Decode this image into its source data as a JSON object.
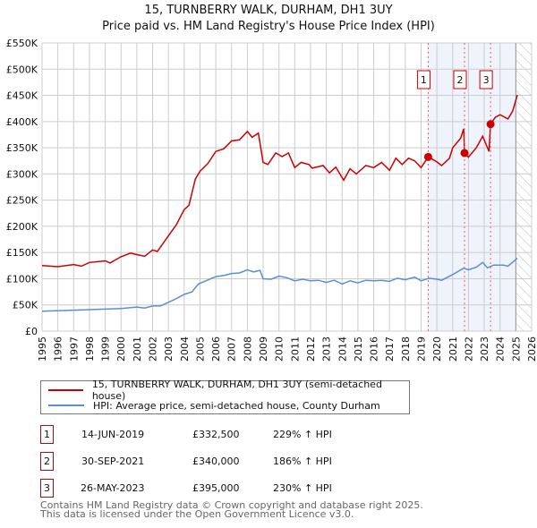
{
  "chart_data": {
    "type": "line",
    "title": "15, TURNBERRY WALK, DURHAM, DH1 3UY",
    "subtitle": "Price paid vs. HM Land Registry's House Price Index (HPI)",
    "xlim": [
      1995,
      2026
    ],
    "ylim": [
      0,
      550000
    ],
    "x_ticks": [
      "1995",
      "1996",
      "1997",
      "1998",
      "1999",
      "2000",
      "2001",
      "2002",
      "2003",
      "2004",
      "2005",
      "2006",
      "2007",
      "2008",
      "2009",
      "2010",
      "2011",
      "2012",
      "2013",
      "2014",
      "2015",
      "2016",
      "2017",
      "2018",
      "2019",
      "2020",
      "2021",
      "2022",
      "2023",
      "2024",
      "2025",
      "2026"
    ],
    "y_ticks": [
      {
        "value": 0,
        "label": "£0"
      },
      {
        "value": 50000,
        "label": "£50K"
      },
      {
        "value": 100000,
        "label": "£100K"
      },
      {
        "value": 150000,
        "label": "£150K"
      },
      {
        "value": 200000,
        "label": "£200K"
      },
      {
        "value": 250000,
        "label": "£250K"
      },
      {
        "value": 300000,
        "label": "£300K"
      },
      {
        "value": 350000,
        "label": "£350K"
      },
      {
        "value": 400000,
        "label": "£400K"
      },
      {
        "value": 450000,
        "label": "£450K"
      },
      {
        "value": 500000,
        "label": "£500K"
      },
      {
        "value": 550000,
        "label": "£550K"
      }
    ],
    "grid": true,
    "series": [
      {
        "name": "15, TURNBERRY WALK, DURHAM, DH1 3UY (semi-detached house)",
        "color": "#cc0000",
        "x": [
          1995,
          1996,
          1997,
          1997.5,
          1998,
          1999,
          1999.3,
          2000,
          2000.6,
          2001,
          2001.5,
          2002,
          2002.3,
          2003,
          2003.5,
          2004,
          2004.3,
          2004.7,
          2005,
          2005.5,
          2006,
          2006.5,
          2007,
          2007.5,
          2008,
          2008.3,
          2008.7,
          2009,
          2009.3,
          2009.8,
          2010.2,
          2010.6,
          2011,
          2011.4,
          2011.9,
          2012.1,
          2012.8,
          2013.2,
          2013.6,
          2014.1,
          2014.5,
          2014.9,
          2015.5,
          2016,
          2016.5,
          2017,
          2017.4,
          2017.8,
          2018.2,
          2018.6,
          2019,
          2019.45,
          2020,
          2020.3,
          2020.8,
          2021,
          2021.5,
          2021.7,
          2021.75,
          2022,
          2022.5,
          2022.9,
          2023.3,
          2023.4,
          2023.7,
          2024,
          2024.5,
          2024.8,
          2025.1
        ],
        "y": [
          125000,
          123000,
          127000,
          124000,
          131000,
          134000,
          130000,
          142000,
          149000,
          146000,
          143000,
          155000,
          152000,
          182000,
          203000,
          232000,
          240000,
          290000,
          305000,
          320000,
          343000,
          348000,
          363000,
          365000,
          381000,
          370000,
          378000,
          322000,
          318000,
          340000,
          333000,
          340000,
          312000,
          322000,
          318000,
          311000,
          316000,
          302000,
          313000,
          288000,
          310000,
          300000,
          316000,
          312000,
          322000,
          307000,
          330000,
          318000,
          330000,
          325000,
          312000,
          332500,
          323000,
          316000,
          330000,
          350000,
          368000,
          386000,
          340000,
          332000,
          350000,
          372000,
          343000,
          395000,
          408000,
          413000,
          405000,
          420000,
          451000
        ]
      },
      {
        "name": "HPI: Average price, semi-detached house, County Durham",
        "color": "#5b8fd4",
        "x": [
          1995,
          1997,
          1998,
          1999,
          2000,
          2001,
          2001.5,
          2002,
          2002.5,
          2003,
          2003.5,
          2004,
          2004.5,
          2004.9,
          2005.3,
          2006,
          2006.5,
          2007,
          2007.5,
          2008,
          2008.4,
          2008.8,
          2009,
          2009.5,
          2010,
          2010.5,
          2011,
          2011.5,
          2012,
          2012.5,
          2013,
          2013.5,
          2014,
          2014.5,
          2015,
          2015.5,
          2016,
          2016.5,
          2017,
          2017.5,
          2018,
          2018.6,
          2019,
          2019.5,
          2020,
          2020.3,
          2021,
          2021.7,
          2022,
          2022.5,
          2022.9,
          2023.2,
          2023.6,
          2024.2,
          2024.5,
          2025.1
        ],
        "y": [
          38000,
          40000,
          41000,
          42000,
          43000,
          46000,
          44000,
          48000,
          48000,
          55000,
          62000,
          70000,
          75000,
          90000,
          95000,
          104000,
          106000,
          110000,
          111000,
          117000,
          113000,
          116000,
          100000,
          99000,
          105000,
          102000,
          96000,
          99000,
          96000,
          97000,
          93000,
          97000,
          90000,
          96000,
          92000,
          97000,
          96000,
          97000,
          95000,
          101000,
          98000,
          103000,
          96000,
          101000,
          99000,
          97000,
          108000,
          120000,
          117000,
          122000,
          131000,
          121000,
          126000,
          126000,
          124000,
          139000
        ]
      }
    ],
    "sales": [
      {
        "label": "1",
        "x": 2019.45,
        "y": 332500,
        "date": "14-JUN-2019",
        "price": "£332,500",
        "hpi": "229% ↑ HPI"
      },
      {
        "label": "2",
        "x": 2021.75,
        "y": 340000,
        "date": "30-SEP-2021",
        "price": "£340,000",
        "hpi": "186% ↑ HPI"
      },
      {
        "label": "3",
        "x": 2023.4,
        "y": 395000,
        "date": "26-MAY-2023",
        "price": "£395,000",
        "hpi": "230% ↑ HPI"
      }
    ],
    "shaded_range": [
      2019.45,
      2025.0
    ],
    "hatched_range": [
      2025.0,
      2026
    ],
    "legend": "below"
  },
  "footer": {
    "line1": "Contains HM Land Registry data © Crown copyright and database right 2025.",
    "line2": "This data is licensed under the Open Government Licence v3.0."
  }
}
